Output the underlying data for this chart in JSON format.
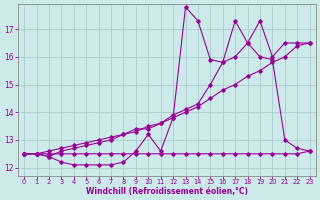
{
  "background_color": "#cceaea",
  "line_color": "#990099",
  "grid_color": "#aacccc",
  "xlabel": "Windchill (Refroidissement éolien,°C)",
  "yticks": [
    12,
    13,
    14,
    15,
    16,
    17
  ],
  "xticks": [
    0,
    1,
    2,
    3,
    4,
    5,
    6,
    7,
    8,
    9,
    10,
    11,
    12,
    13,
    14,
    15,
    16,
    17,
    18,
    19,
    20,
    21,
    22,
    23
  ],
  "xlim": [
    -0.5,
    23.5
  ],
  "ylim": [
    11.7,
    17.9
  ],
  "s1_x": [
    0,
    1,
    2,
    3,
    4,
    5,
    6,
    7,
    8,
    9,
    10,
    11,
    12,
    13,
    14,
    15,
    16,
    17,
    18,
    19,
    20,
    21,
    22,
    23
  ],
  "s1_y": [
    12.5,
    12.5,
    12.5,
    12.5,
    12.5,
    12.5,
    12.5,
    12.5,
    12.5,
    12.5,
    12.5,
    12.5,
    12.5,
    12.5,
    12.5,
    12.5,
    12.5,
    12.5,
    12.5,
    12.5,
    12.5,
    12.5,
    12.5,
    12.6
  ],
  "s2_x": [
    0,
    1,
    2,
    3,
    4,
    5,
    6,
    7,
    8,
    9,
    10,
    11,
    12,
    13,
    14,
    15,
    16,
    17,
    18,
    19,
    20,
    21,
    22,
    23
  ],
  "s2_y": [
    12.5,
    12.5,
    12.6,
    12.7,
    12.8,
    12.9,
    13.0,
    13.1,
    13.2,
    13.3,
    13.5,
    13.6,
    13.8,
    14.0,
    14.2,
    14.5,
    14.8,
    15.0,
    15.3,
    15.5,
    15.8,
    16.0,
    16.4,
    16.5
  ],
  "s3_x": [
    0,
    1,
    2,
    3,
    4,
    5,
    6,
    7,
    8,
    9,
    10,
    11,
    12,
    13,
    14,
    15,
    16,
    17,
    18,
    19,
    20,
    21,
    22,
    23
  ],
  "s3_y": [
    12.5,
    12.5,
    12.4,
    12.2,
    12.1,
    12.1,
    12.1,
    12.1,
    12.2,
    12.6,
    13.2,
    12.6,
    13.8,
    17.8,
    17.3,
    15.9,
    15.8,
    17.3,
    16.5,
    16.0,
    15.9,
    13.0,
    12.7,
    12.6
  ],
  "s4_x": [
    0,
    1,
    2,
    3,
    4,
    5,
    6,
    7,
    8,
    9,
    10,
    11,
    12,
    13,
    14,
    15,
    16,
    17,
    18,
    19,
    20,
    21,
    22,
    23
  ],
  "s4_y": [
    12.5,
    12.5,
    12.4,
    12.6,
    12.7,
    12.8,
    12.9,
    13.0,
    13.2,
    13.4,
    13.4,
    13.6,
    13.9,
    14.1,
    14.3,
    15.0,
    15.8,
    16.0,
    16.5,
    17.3,
    16.0,
    16.5,
    16.5,
    16.5
  ]
}
